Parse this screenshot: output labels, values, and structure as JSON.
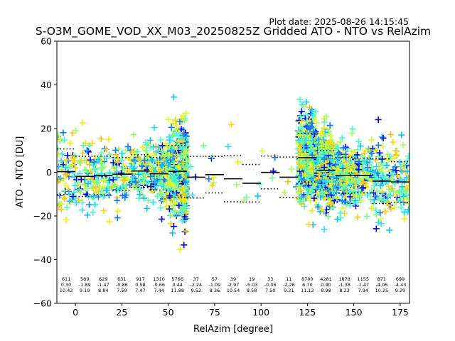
{
  "plot_date": "Plot date: 2025-08-26 14:15:45",
  "chart_data": {
    "type": "scatter",
    "title": "S-O3M_GOME_VOD_XX_M03_20250825Z Gridded ATO - NTO vs RelAzim",
    "xlabel": "RelAzim [degree]",
    "ylabel": "ATO - NTO [DU]",
    "xlim": [
      -10,
      180
    ],
    "ylim": [
      -60,
      60
    ],
    "xticks": [
      0,
      25,
      50,
      75,
      100,
      125,
      150,
      175
    ],
    "yticks": [
      -60,
      -40,
      -20,
      0,
      20,
      40,
      60
    ],
    "grid": false,
    "legend": "none",
    "colors": {
      "marker_palette": [
        "#0000ff",
        "#0a7cff",
        "#0ec0ff",
        "#22e0ff",
        "#3cffd4",
        "#46ffc0",
        "#6cff90",
        "#a0ff5c",
        "#d0ff2a",
        "#f4f000",
        "#ffd800",
        "#ffc400"
      ],
      "mean_line": "#000000",
      "std_line": "#000000"
    },
    "bins": [
      {
        "x_start": -10,
        "x_end": 0,
        "count": "611",
        "mean": "0.30",
        "std": "10.42"
      },
      {
        "x_start": 0,
        "x_end": 10,
        "count": "589",
        "mean": "-1.89",
        "std": "9.19"
      },
      {
        "x_start": 10,
        "x_end": 20,
        "count": "629",
        "mean": "-1.47",
        "std": "8.84"
      },
      {
        "x_start": 20,
        "x_end": 30,
        "count": "631",
        "mean": "-0.86",
        "std": "7.59"
      },
      {
        "x_start": 30,
        "x_end": 40,
        "count": "917",
        "mean": "0.58",
        "std": "7.47"
      },
      {
        "x_start": 40,
        "x_end": 50,
        "count": "1310",
        "mean": "-0.66",
        "std": "7.44"
      },
      {
        "x_start": 50,
        "x_end": 60,
        "count": "5766",
        "mean": "0.44",
        "std": "11.88"
      },
      {
        "x_start": 60,
        "x_end": 70,
        "count": "37",
        "mean": "-2.24",
        "std": "9.52"
      },
      {
        "x_start": 70,
        "x_end": 80,
        "count": "57",
        "mean": "-1.09",
        "std": "8.36"
      },
      {
        "x_start": 80,
        "x_end": 90,
        "count": "39",
        "mean": "-2.97",
        "std": "10.54"
      },
      {
        "x_start": 90,
        "x_end": 100,
        "count": "19",
        "mean": "-5.03",
        "std": "8.58"
      },
      {
        "x_start": 100,
        "x_end": 110,
        "count": "33",
        "mean": "-0.06",
        "std": "7.50"
      },
      {
        "x_start": 110,
        "x_end": 120,
        "count": "11",
        "mean": "-2.26",
        "std": "9.21"
      },
      {
        "x_start": 120,
        "x_end": 130,
        "count": "8700",
        "mean": "6.70",
        "std": "11.12"
      },
      {
        "x_start": 130,
        "x_end": 140,
        "count": "4281",
        "mean": "0.90",
        "std": "8.98"
      },
      {
        "x_start": 140,
        "x_end": 150,
        "count": "1878",
        "mean": "-1.38",
        "std": "8.23"
      },
      {
        "x_start": 150,
        "x_end": 160,
        "count": "1155",
        "mean": "-1.47",
        "std": "7.94"
      },
      {
        "x_start": 160,
        "x_end": 170,
        "count": "871",
        "mean": "-4.06",
        "std": "10.25"
      },
      {
        "x_start": 170,
        "x_end": 180,
        "count": "699",
        "mean": "-4.43",
        "std": "9.29"
      }
    ]
  }
}
